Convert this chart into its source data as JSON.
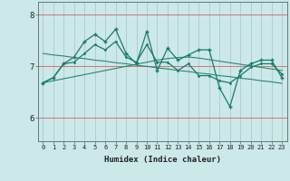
{
  "xlabel": "Humidex (Indice chaleur)",
  "background_color": "#cce8e8",
  "grid_color_x": "#aacccc",
  "grid_color_y": "#cc7777",
  "line_color": "#1a7a6a",
  "x_values": [
    0,
    1,
    2,
    3,
    4,
    5,
    6,
    7,
    8,
    9,
    10,
    11,
    12,
    13,
    14,
    15,
    16,
    17,
    18,
    19,
    20,
    21,
    22,
    23
  ],
  "series1": [
    6.68,
    6.78,
    7.05,
    7.18,
    7.48,
    7.62,
    7.48,
    7.72,
    7.25,
    7.05,
    7.68,
    6.92,
    7.35,
    7.12,
    7.22,
    7.32,
    7.32,
    6.58,
    6.22,
    6.92,
    7.05,
    7.12,
    7.12,
    6.78
  ],
  "series2": [
    6.68,
    6.78,
    7.05,
    7.08,
    7.25,
    7.42,
    7.32,
    7.48,
    7.18,
    7.08,
    7.42,
    7.08,
    7.08,
    6.92,
    7.05,
    6.82,
    6.82,
    6.72,
    6.68,
    6.82,
    6.98,
    7.05,
    7.05,
    6.85
  ],
  "trend1": [
    7.25,
    7.22,
    7.2,
    7.17,
    7.15,
    7.12,
    7.1,
    7.07,
    7.05,
    7.02,
    7.0,
    6.97,
    6.95,
    6.92,
    6.9,
    6.87,
    6.85,
    6.82,
    6.8,
    6.77,
    6.75,
    6.72,
    6.7,
    6.67
  ],
  "trend2": [
    6.68,
    6.72,
    6.76,
    6.8,
    6.84,
    6.88,
    6.92,
    6.96,
    7.0,
    7.04,
    7.08,
    7.12,
    7.15,
    7.17,
    7.18,
    7.16,
    7.13,
    7.1,
    7.07,
    7.04,
    7.01,
    6.98,
    6.95,
    6.92
  ],
  "ylim_low": 5.55,
  "ylim_high": 8.25,
  "yticks": [
    6,
    7,
    8
  ],
  "xticks": [
    0,
    1,
    2,
    3,
    4,
    5,
    6,
    7,
    8,
    9,
    10,
    11,
    12,
    13,
    14,
    15,
    16,
    17,
    18,
    19,
    20,
    21,
    22,
    23
  ]
}
